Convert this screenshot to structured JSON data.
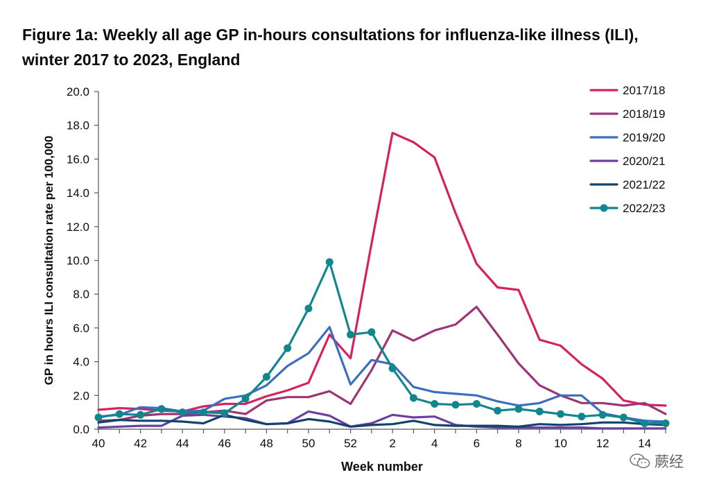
{
  "title_line1": "Figure 1a: Weekly all age GP in-hours consultations for influenza-like illness (ILI),",
  "title_line2": "winter 2017 to 2023, England",
  "watermark_text": "蕨经",
  "chart_data": {
    "type": "line",
    "title": "Figure 1a: Weekly all age GP in-hours consultations for influenza-like illness (ILI), winter 2017 to 2023, England",
    "xlabel": "Week number",
    "ylabel": "GP in hours ILI consultation rate per 100,000",
    "ylim": [
      0,
      20
    ],
    "y_ticks": [
      "0.0",
      "2.0",
      "4.0",
      "6.0",
      "8.0",
      "10.0",
      "12.0",
      "14.0",
      "16.0",
      "18.0",
      "20.0"
    ],
    "x_ticks": [
      "40",
      "42",
      "44",
      "46",
      "48",
      "50",
      "52",
      "2",
      "4",
      "6",
      "8",
      "10",
      "12",
      "14"
    ],
    "categories": [
      "40",
      "41",
      "42",
      "43",
      "44",
      "45",
      "46",
      "47",
      "48",
      "49",
      "50",
      "51",
      "52",
      "1",
      "2",
      "3",
      "4",
      "5",
      "6",
      "7",
      "8",
      "9",
      "10",
      "11",
      "12",
      "13",
      "14",
      "15"
    ],
    "legend_position": "top-right",
    "grid": false,
    "series": [
      {
        "name": "2017/18",
        "color": "#d6215e",
        "marker": false,
        "values": [
          1.15,
          1.25,
          1.2,
          1.1,
          1.05,
          1.35,
          1.5,
          1.5,
          1.95,
          2.3,
          2.75,
          5.6,
          4.2,
          11.0,
          17.55,
          17.0,
          16.1,
          12.8,
          9.8,
          8.4,
          8.25,
          5.3,
          4.95,
          3.85,
          3.0,
          1.7,
          1.45,
          1.4
        ]
      },
      {
        "name": "2018/19",
        "color": "#9c3476",
        "marker": false,
        "values": [
          0.5,
          0.55,
          0.8,
          0.9,
          0.9,
          1.0,
          1.1,
          0.9,
          1.7,
          1.9,
          1.9,
          2.25,
          1.5,
          3.5,
          5.85,
          5.25,
          5.85,
          6.2,
          7.25,
          5.6,
          3.9,
          2.6,
          2.0,
          1.55,
          1.55,
          1.4,
          1.55,
          0.9
        ]
      },
      {
        "name": "2019/20",
        "color": "#3a6fbe",
        "marker": false,
        "values": [
          0.75,
          0.85,
          1.3,
          1.25,
          1.05,
          1.1,
          1.8,
          2.0,
          2.6,
          3.75,
          4.5,
          6.05,
          2.65,
          4.1,
          3.85,
          2.5,
          2.2,
          2.1,
          2.0,
          1.65,
          1.4,
          1.55,
          2.0,
          2.0,
          0.95,
          0.7,
          0.5,
          0.45
        ]
      },
      {
        "name": "2020/21",
        "color": "#6b3fa0",
        "marker": false,
        "values": [
          0.1,
          0.15,
          0.2,
          0.2,
          0.8,
          0.85,
          0.75,
          0.65,
          0.3,
          0.35,
          1.05,
          0.8,
          0.15,
          0.35,
          0.85,
          0.7,
          0.75,
          0.25,
          0.15,
          0.1,
          0.1,
          0.1,
          0.1,
          0.1,
          0.05,
          0.05,
          0.05,
          0.05
        ]
      },
      {
        "name": "2021/22",
        "color": "#12436d",
        "marker": false,
        "values": [
          0.4,
          0.55,
          0.5,
          0.5,
          0.45,
          0.35,
          0.85,
          0.55,
          0.3,
          0.35,
          0.6,
          0.45,
          0.15,
          0.25,
          0.3,
          0.5,
          0.25,
          0.2,
          0.2,
          0.2,
          0.15,
          0.3,
          0.25,
          0.3,
          0.4,
          0.4,
          0.3,
          0.25
        ]
      },
      {
        "name": "2022/23",
        "color": "#12868f",
        "marker": true,
        "values": [
          0.7,
          0.9,
          0.85,
          1.2,
          1.0,
          1.0,
          0.95,
          1.8,
          3.1,
          4.8,
          7.15,
          9.9,
          5.6,
          5.75,
          3.6,
          1.85,
          1.5,
          1.45,
          1.5,
          1.1,
          1.2,
          1.05,
          0.9,
          0.75,
          0.85,
          0.7,
          0.35,
          0.35
        ]
      }
    ]
  }
}
